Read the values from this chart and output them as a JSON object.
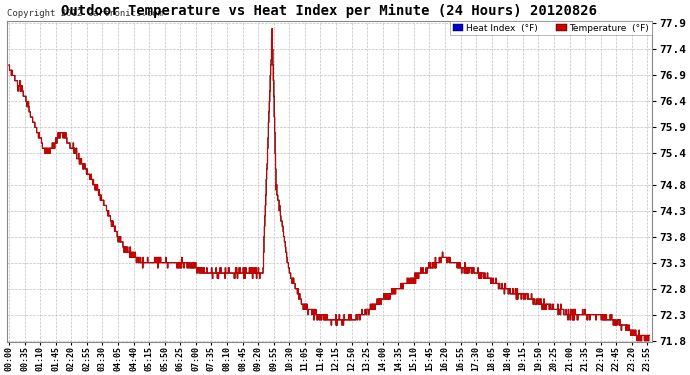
{
  "title": "Outdoor Temperature vs Heat Index per Minute (24 Hours) 20120826",
  "copyright_text": "Copyright 2012 Cartronics.com",
  "background_color": "#ffffff",
  "plot_background": "#ffffff",
  "grid_color": "#c0c0c0",
  "line_color_temp": "#cc0000",
  "line_color_heat": "#000000",
  "ylim_min": 71.8,
  "ylim_max": 77.9,
  "yticks": [
    71.8,
    72.3,
    72.8,
    73.3,
    73.8,
    74.3,
    74.8,
    75.4,
    75.9,
    76.4,
    76.9,
    77.4,
    77.9
  ],
  "legend_heat_bg": "#0000cc",
  "legend_temp_bg": "#cc0000",
  "xtick_interval_minutes": 35
}
